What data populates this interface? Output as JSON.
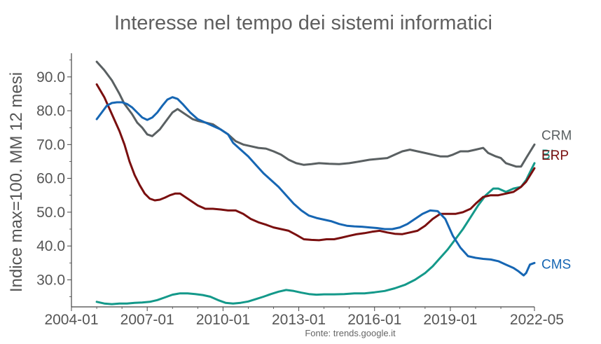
{
  "chart_data": {
    "type": "line",
    "title": "Interesse nel tempo dei sistemi informatici",
    "ylabel": "Indice max=100. MM 12 mesi",
    "xlabel": "",
    "source": "Fonte: trends.google.it",
    "ylim": [
      22,
      97
    ],
    "xlim": [
      2004.0,
      2022.33
    ],
    "x_ticks": [
      {
        "label": "2004-01",
        "value": 2004.0
      },
      {
        "label": "2007-01",
        "value": 2007.0
      },
      {
        "label": "2010-01",
        "value": 2010.0
      },
      {
        "label": "2013-01",
        "value": 2013.0
      },
      {
        "label": "2016-01",
        "value": 2016.0
      },
      {
        "label": "2019-01",
        "value": 2019.0
      },
      {
        "label": "2022-05",
        "value": 2022.33
      }
    ],
    "y_ticks": [
      {
        "label": "30.0",
        "value": 30
      },
      {
        "label": "40.0",
        "value": 40
      },
      {
        "label": "50.0",
        "value": 50
      },
      {
        "label": "60.0",
        "value": 60
      },
      {
        "label": "70.0",
        "value": 70
      },
      {
        "label": "80.0",
        "value": 80
      },
      {
        "label": "90.0",
        "value": 90
      }
    ],
    "grid": false,
    "legend": "labels at line ends (right)",
    "series": [
      {
        "name": "CRM",
        "color": "#5a6062",
        "points": [
          [
            2005.0,
            94.5
          ],
          [
            2005.3,
            92
          ],
          [
            2005.6,
            89
          ],
          [
            2005.9,
            85
          ],
          [
            2006.1,
            82
          ],
          [
            2006.4,
            79
          ],
          [
            2006.6,
            76.5
          ],
          [
            2006.8,
            75
          ],
          [
            2007.0,
            73
          ],
          [
            2007.2,
            72.5
          ],
          [
            2007.5,
            74.5
          ],
          [
            2007.8,
            77.5
          ],
          [
            2008.0,
            79.5
          ],
          [
            2008.2,
            80.5
          ],
          [
            2008.5,
            79
          ],
          [
            2008.8,
            77.5
          ],
          [
            2009.0,
            77
          ],
          [
            2009.3,
            76.5
          ],
          [
            2009.6,
            76
          ],
          [
            2009.9,
            74.5
          ],
          [
            2010.2,
            73
          ],
          [
            2010.5,
            71
          ],
          [
            2010.8,
            70
          ],
          [
            2011.1,
            69.5
          ],
          [
            2011.4,
            69
          ],
          [
            2011.7,
            68.8
          ],
          [
            2012.0,
            68
          ],
          [
            2012.3,
            67
          ],
          [
            2012.6,
            65.5
          ],
          [
            2012.9,
            64.5
          ],
          [
            2013.2,
            64
          ],
          [
            2013.5,
            64.2
          ],
          [
            2013.8,
            64.5
          ],
          [
            2014.2,
            64.3
          ],
          [
            2014.6,
            64.2
          ],
          [
            2015.0,
            64.5
          ],
          [
            2015.4,
            65
          ],
          [
            2015.8,
            65.5
          ],
          [
            2016.2,
            65.8
          ],
          [
            2016.5,
            66
          ],
          [
            2016.8,
            67
          ],
          [
            2017.1,
            68
          ],
          [
            2017.4,
            68.5
          ],
          [
            2017.7,
            68
          ],
          [
            2018.0,
            67.5
          ],
          [
            2018.3,
            67
          ],
          [
            2018.6,
            66.5
          ],
          [
            2018.9,
            66.5
          ],
          [
            2019.1,
            67
          ],
          [
            2019.4,
            68
          ],
          [
            2019.7,
            68
          ],
          [
            2020.0,
            68.5
          ],
          [
            2020.3,
            69
          ],
          [
            2020.5,
            67.5
          ],
          [
            2020.8,
            66.5
          ],
          [
            2021.0,
            66
          ],
          [
            2021.2,
            64.5
          ],
          [
            2021.4,
            64
          ],
          [
            2021.6,
            63.5
          ],
          [
            2021.8,
            63.5
          ],
          [
            2022.0,
            66
          ],
          [
            2022.33,
            70
          ]
        ]
      },
      {
        "name": "BI",
        "color": "#14998a",
        "points": [
          [
            2005.0,
            23.5
          ],
          [
            2005.3,
            23
          ],
          [
            2005.6,
            22.8
          ],
          [
            2005.9,
            23
          ],
          [
            2006.2,
            23
          ],
          [
            2006.5,
            23.2
          ],
          [
            2006.8,
            23.3
          ],
          [
            2007.1,
            23.5
          ],
          [
            2007.4,
            24
          ],
          [
            2007.7,
            24.8
          ],
          [
            2008.0,
            25.6
          ],
          [
            2008.3,
            26
          ],
          [
            2008.6,
            26
          ],
          [
            2008.9,
            25.8
          ],
          [
            2009.2,
            25.5
          ],
          [
            2009.5,
            25
          ],
          [
            2009.8,
            24
          ],
          [
            2010.1,
            23.2
          ],
          [
            2010.4,
            23
          ],
          [
            2010.7,
            23.2
          ],
          [
            2011.0,
            23.6
          ],
          [
            2011.3,
            24.3
          ],
          [
            2011.6,
            25
          ],
          [
            2011.9,
            25.8
          ],
          [
            2012.2,
            26.5
          ],
          [
            2012.5,
            27
          ],
          [
            2012.8,
            26.7
          ],
          [
            2013.1,
            26.2
          ],
          [
            2013.4,
            25.8
          ],
          [
            2013.7,
            25.6
          ],
          [
            2014.0,
            25.7
          ],
          [
            2014.4,
            25.7
          ],
          [
            2014.8,
            25.8
          ],
          [
            2015.2,
            26
          ],
          [
            2015.6,
            26
          ],
          [
            2016.0,
            26.3
          ],
          [
            2016.4,
            26.7
          ],
          [
            2016.8,
            27.5
          ],
          [
            2017.2,
            28.5
          ],
          [
            2017.6,
            30
          ],
          [
            2018.0,
            32
          ],
          [
            2018.3,
            34
          ],
          [
            2018.6,
            36.5
          ],
          [
            2018.9,
            39
          ],
          [
            2019.2,
            42
          ],
          [
            2019.5,
            45
          ],
          [
            2019.8,
            48.5
          ],
          [
            2020.1,
            52
          ],
          [
            2020.4,
            55
          ],
          [
            2020.7,
            57
          ],
          [
            2020.9,
            57
          ],
          [
            2021.2,
            56
          ],
          [
            2021.5,
            57
          ],
          [
            2021.8,
            57.5
          ],
          [
            2022.0,
            59.5
          ],
          [
            2022.33,
            64.5
          ]
        ]
      },
      {
        "name": "ERP",
        "color": "#7a0f0f",
        "points": [
          [
            2005.0,
            87.8
          ],
          [
            2005.3,
            84
          ],
          [
            2005.6,
            79
          ],
          [
            2005.9,
            74
          ],
          [
            2006.1,
            70
          ],
          [
            2006.3,
            65
          ],
          [
            2006.5,
            61
          ],
          [
            2006.7,
            58
          ],
          [
            2006.9,
            55.5
          ],
          [
            2007.1,
            54
          ],
          [
            2007.3,
            53.5
          ],
          [
            2007.5,
            53.7
          ],
          [
            2007.7,
            54.3
          ],
          [
            2007.9,
            55
          ],
          [
            2008.1,
            55.5
          ],
          [
            2008.3,
            55.5
          ],
          [
            2008.5,
            54.5
          ],
          [
            2008.8,
            53
          ],
          [
            2009.0,
            52
          ],
          [
            2009.3,
            51
          ],
          [
            2009.6,
            51
          ],
          [
            2009.9,
            50.8
          ],
          [
            2010.2,
            50.5
          ],
          [
            2010.5,
            50.5
          ],
          [
            2010.8,
            49.5
          ],
          [
            2011.1,
            48
          ],
          [
            2011.4,
            47
          ],
          [
            2011.7,
            46.3
          ],
          [
            2012.0,
            45.5
          ],
          [
            2012.3,
            45
          ],
          [
            2012.6,
            44.5
          ],
          [
            2012.9,
            43.3
          ],
          [
            2013.2,
            42
          ],
          [
            2013.5,
            41.8
          ],
          [
            2013.8,
            41.7
          ],
          [
            2014.1,
            42
          ],
          [
            2014.4,
            42
          ],
          [
            2014.7,
            42.5
          ],
          [
            2015.0,
            43
          ],
          [
            2015.3,
            43.5
          ],
          [
            2015.6,
            43.8
          ],
          [
            2015.9,
            44.2
          ],
          [
            2016.2,
            44.5
          ],
          [
            2016.5,
            44
          ],
          [
            2016.8,
            43.6
          ],
          [
            2017.1,
            43.5
          ],
          [
            2017.4,
            44
          ],
          [
            2017.7,
            44.5
          ],
          [
            2018.0,
            46
          ],
          [
            2018.3,
            48
          ],
          [
            2018.6,
            49.5
          ],
          [
            2018.9,
            49.5
          ],
          [
            2019.2,
            49.5
          ],
          [
            2019.5,
            50
          ],
          [
            2019.8,
            51
          ],
          [
            2020.0,
            52.5
          ],
          [
            2020.3,
            54.5
          ],
          [
            2020.6,
            55
          ],
          [
            2020.9,
            55
          ],
          [
            2021.2,
            55.5
          ],
          [
            2021.5,
            56
          ],
          [
            2021.8,
            57.5
          ],
          [
            2022.0,
            59
          ],
          [
            2022.33,
            63
          ]
        ]
      },
      {
        "name": "CMS",
        "color": "#1666b3",
        "points": [
          [
            2005.0,
            77.5
          ],
          [
            2005.2,
            79.5
          ],
          [
            2005.4,
            81.5
          ],
          [
            2005.6,
            82.3
          ],
          [
            2005.8,
            82.5
          ],
          [
            2006.0,
            82.5
          ],
          [
            2006.2,
            82
          ],
          [
            2006.4,
            81
          ],
          [
            2006.6,
            79.5
          ],
          [
            2006.8,
            78
          ],
          [
            2007.0,
            77.3
          ],
          [
            2007.2,
            78
          ],
          [
            2007.4,
            79.5
          ],
          [
            2007.6,
            81.5
          ],
          [
            2007.8,
            83.3
          ],
          [
            2008.0,
            84
          ],
          [
            2008.2,
            83.5
          ],
          [
            2008.4,
            82
          ],
          [
            2008.7,
            79.5
          ],
          [
            2009.0,
            77.5
          ],
          [
            2009.3,
            76.5
          ],
          [
            2009.6,
            75.5
          ],
          [
            2009.9,
            74.5
          ],
          [
            2010.2,
            73
          ],
          [
            2010.4,
            70.5
          ],
          [
            2010.7,
            68.5
          ],
          [
            2011.0,
            66.5
          ],
          [
            2011.3,
            64
          ],
          [
            2011.6,
            61.5
          ],
          [
            2011.9,
            59.5
          ],
          [
            2012.2,
            57.5
          ],
          [
            2012.5,
            55
          ],
          [
            2012.8,
            52.5
          ],
          [
            2013.1,
            50.5
          ],
          [
            2013.4,
            49
          ],
          [
            2013.7,
            48.3
          ],
          [
            2014.0,
            47.8
          ],
          [
            2014.3,
            47.3
          ],
          [
            2014.6,
            46.5
          ],
          [
            2014.9,
            46
          ],
          [
            2015.2,
            45.8
          ],
          [
            2015.5,
            45.7
          ],
          [
            2015.8,
            45.5
          ],
          [
            2016.1,
            45.3
          ],
          [
            2016.4,
            45
          ],
          [
            2016.7,
            45
          ],
          [
            2017.0,
            45.5
          ],
          [
            2017.3,
            46.5
          ],
          [
            2017.6,
            48
          ],
          [
            2017.9,
            49.5
          ],
          [
            2018.2,
            50.5
          ],
          [
            2018.5,
            50.3
          ],
          [
            2018.8,
            48
          ],
          [
            2019.1,
            43
          ],
          [
            2019.4,
            39.5
          ],
          [
            2019.7,
            37
          ],
          [
            2020.0,
            36.5
          ],
          [
            2020.3,
            36.2
          ],
          [
            2020.6,
            36
          ],
          [
            2020.9,
            35.5
          ],
          [
            2021.2,
            34.5
          ],
          [
            2021.5,
            33.5
          ],
          [
            2021.7,
            32.5
          ],
          [
            2021.9,
            31.3
          ],
          [
            2022.0,
            32
          ],
          [
            2022.15,
            34.5
          ],
          [
            2022.33,
            35
          ]
        ]
      }
    ]
  }
}
